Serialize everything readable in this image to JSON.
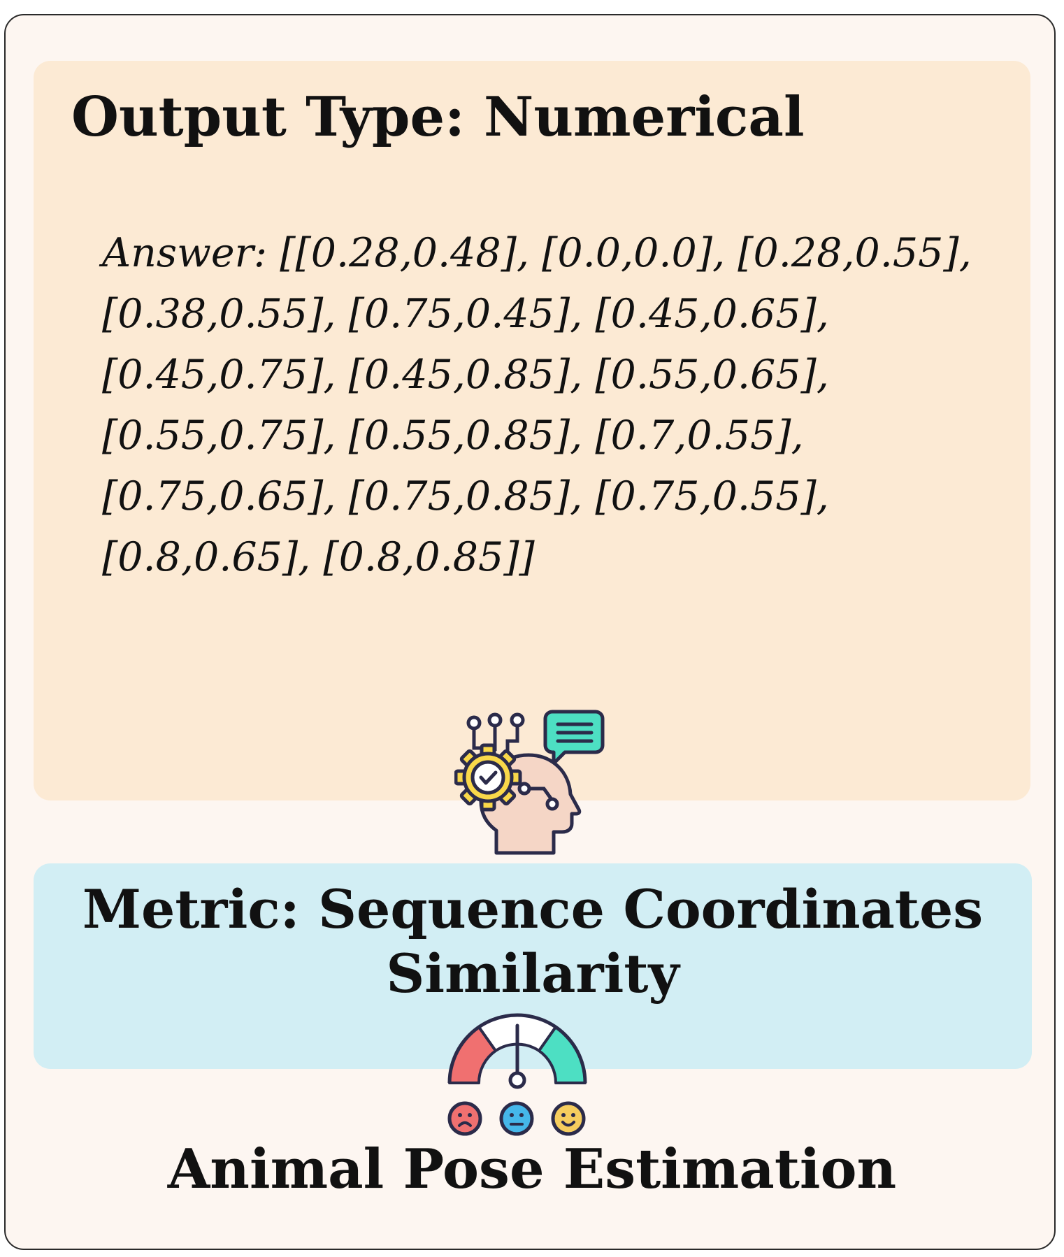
{
  "output": {
    "title": "Output Type: Numerical",
    "answer_lines": [
      "Answer: [[0.28,0.48], [0.0,0.0], [0.28,0.55],",
      "[0.38,0.55], [0.75,0.45], [0.45,0.65],",
      "[0.45,0.75], [0.45,0.85], [0.55,0.65],",
      "[0.55,0.75], [0.55,0.85], [0.7,0.55],",
      "[0.75,0.65], [0.75,0.85], [0.75,0.55],",
      "[0.8,0.65], [0.8,0.85]]"
    ]
  },
  "metric": {
    "title_lines": [
      "Metric: Sequence Coordinates",
      "Similarity"
    ]
  },
  "task": {
    "title": "Animal Pose Estimation"
  },
  "icons": {
    "head": "ai-head-gear-icon",
    "gauge": "satisfaction-gauge-icon"
  },
  "colors": {
    "card_bg": "#fdf6f1",
    "output_panel": "#fcead4",
    "metric_panel": "#d2eef4",
    "gauge_red": "#f07070",
    "gauge_green": "#4ddfc3",
    "gear_yellow": "#f9d84a"
  }
}
